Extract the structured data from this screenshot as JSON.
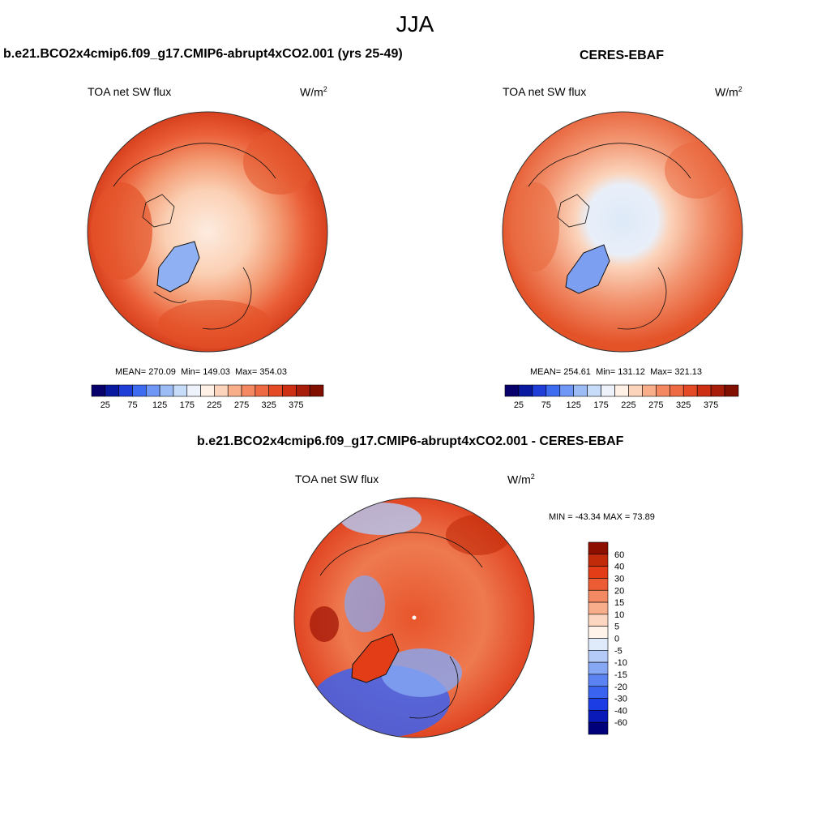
{
  "figure": {
    "season": "JJA",
    "variable": "TOA net SW flux",
    "units_base": "W/m",
    "units_exp": "2"
  },
  "panels": [
    {
      "title": "b.e21.BCO2x4cmip6.f09_g17.CMIP6-abrupt4xCO2.001 (yrs 25-49)",
      "mean_label": "MEAN=",
      "mean": "270.09",
      "min_label": "Min=",
      "min": "149.03",
      "max_label": "Max=",
      "max": "354.03"
    },
    {
      "title": "CERES-EBAF",
      "mean_label": "MEAN=",
      "mean": "254.61",
      "min_label": "Min=",
      "min": "131.12",
      "max_label": "Max=",
      "max": "321.13"
    },
    {
      "title": "b.e21.BCO2x4cmip6.f09_g17.CMIP6-abrupt4xCO2.001 - CERES-EBAF",
      "minmax_text": "MIN = -43.34 MAX =  73.89"
    }
  ],
  "chart_data": [
    {
      "type": "heatmap",
      "projection": "north-polar-stereographic",
      "title": "b.e21.BCO2x4cmip6.f09_g17.CMIP6-abrupt4xCO2.001 (yrs 25-49)",
      "variable": "TOA net SW flux",
      "units": "W/m2",
      "colorbar_ticks": [
        "25",
        "75",
        "125",
        "175",
        "225",
        "275",
        "325",
        "375"
      ],
      "colorbar_levels": [
        0,
        25,
        50,
        75,
        100,
        125,
        150,
        175,
        200,
        225,
        250,
        275,
        300,
        325,
        350,
        375,
        400
      ],
      "stats": {
        "mean": 270.09,
        "min": 149.03,
        "max": 354.03
      }
    },
    {
      "type": "heatmap",
      "projection": "north-polar-stereographic",
      "title": "CERES-EBAF",
      "variable": "TOA net SW flux",
      "units": "W/m2",
      "colorbar_ticks": [
        "25",
        "75",
        "125",
        "175",
        "225",
        "275",
        "325",
        "375"
      ],
      "colorbar_levels": [
        0,
        25,
        50,
        75,
        100,
        125,
        150,
        175,
        200,
        225,
        250,
        275,
        300,
        325,
        350,
        375,
        400
      ],
      "stats": {
        "mean": 254.61,
        "min": 131.12,
        "max": 321.13
      }
    },
    {
      "type": "heatmap",
      "projection": "north-polar-stereographic",
      "title": "b.e21.BCO2x4cmip6.f09_g17.CMIP6-abrupt4xCO2.001 - CERES-EBAF",
      "variable": "TOA net SW flux",
      "units": "W/m2",
      "colorbar_ticks": [
        "60",
        "40",
        "30",
        "20",
        "15",
        "10",
        "5",
        "0",
        "-5",
        "-10",
        "-15",
        "-20",
        "-30",
        "-40",
        "-60"
      ],
      "stats": {
        "min": -43.34,
        "max": 73.89
      }
    }
  ],
  "colors": {
    "mean_scale": [
      "#08006b",
      "#0a1aa0",
      "#1f3ed8",
      "#3d6cf0",
      "#6f97f5",
      "#9cbcf6",
      "#c7dcf8",
      "#eef3fb",
      "#fff1e6",
      "#fcd4bc",
      "#f9ae8a",
      "#f48961",
      "#ee6a42",
      "#e44a26",
      "#cc2f12",
      "#a81c0a",
      "#800f00"
    ],
    "diff_scale": [
      "#00007a",
      "#0a1ab8",
      "#1c3de4",
      "#3a63ef",
      "#5b84f2",
      "#86a8f4",
      "#b3cbf6",
      "#dfeafb",
      "#fff3ea",
      "#fcd6c0",
      "#f8ae8b",
      "#f38a63",
      "#ec5c34",
      "#e33d17",
      "#c22b0a",
      "#8c0f00"
    ]
  }
}
